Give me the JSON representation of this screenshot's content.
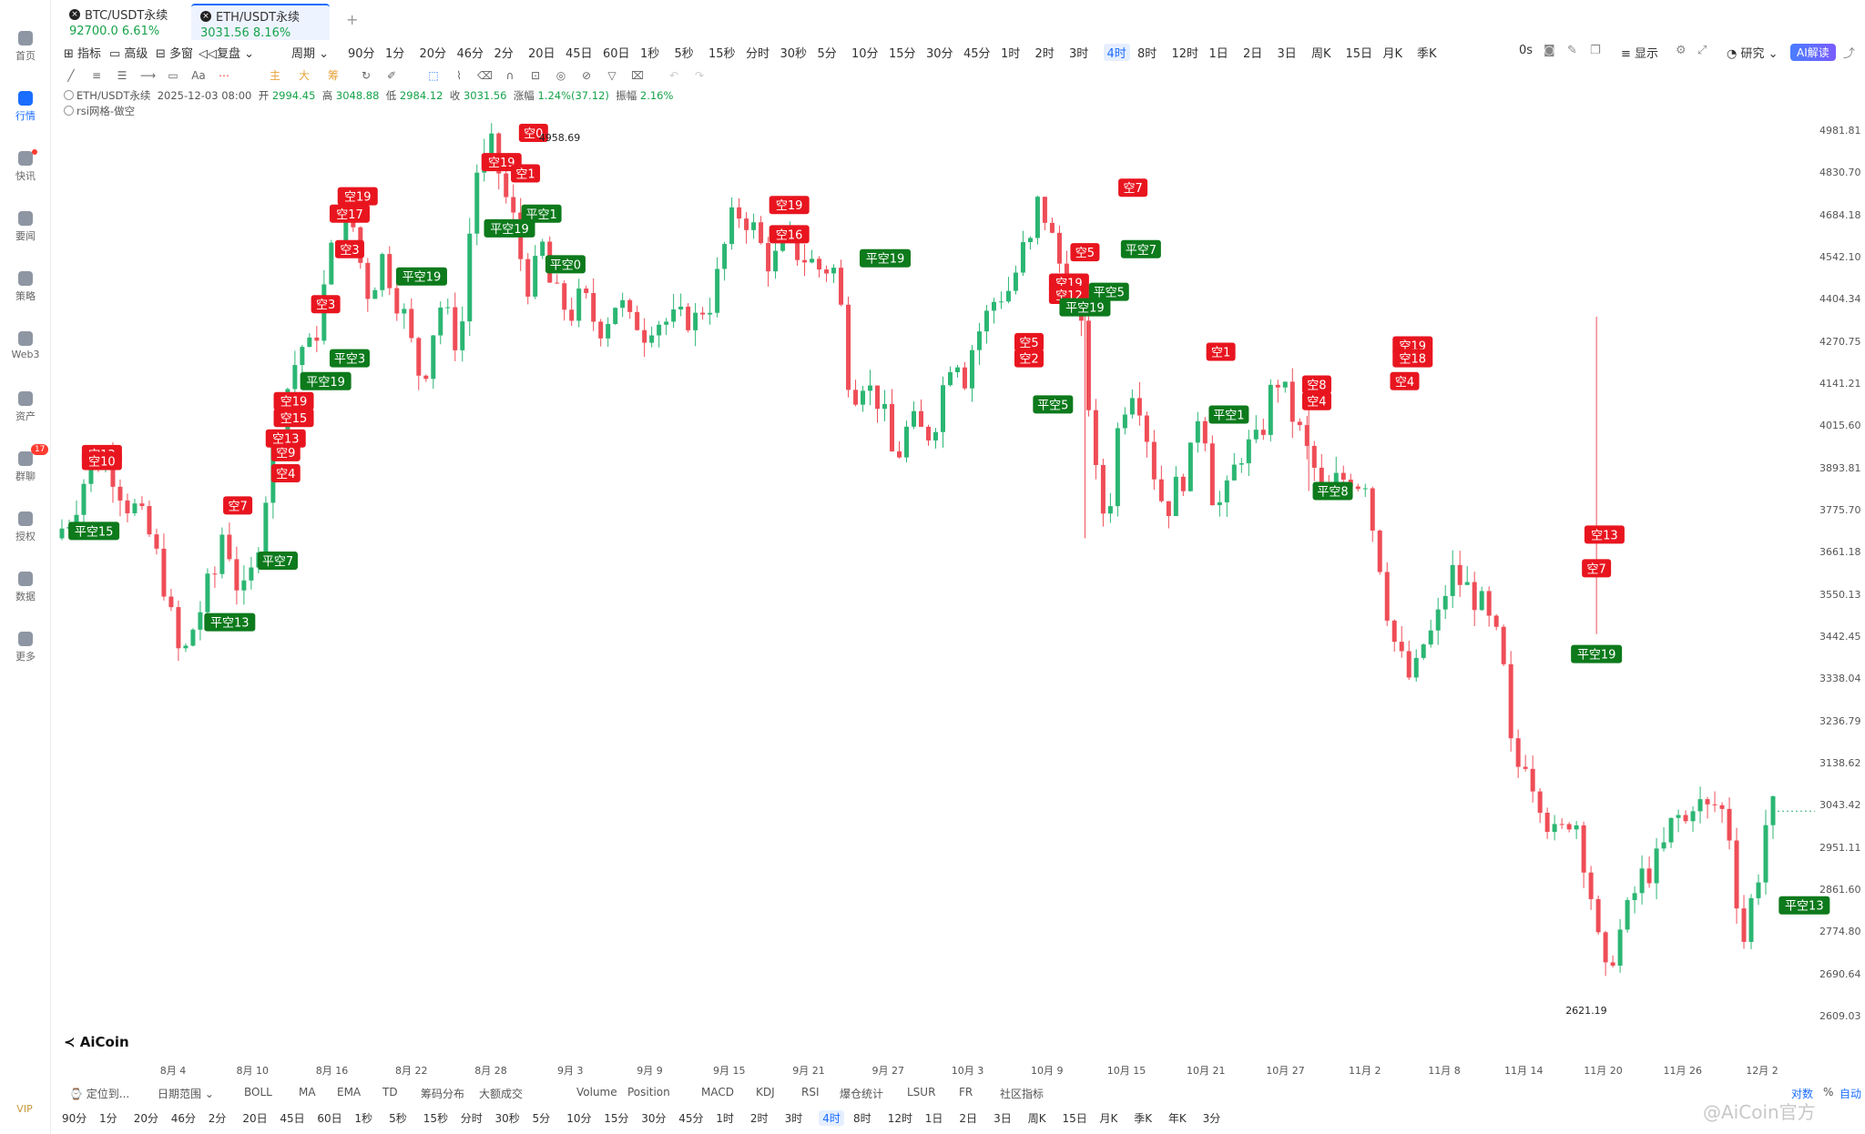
{
  "tabs": [
    {
      "symbol": "BTC/USDT永续",
      "price": "92700.0",
      "change": "6.61%"
    },
    {
      "symbol": "ETH/USDT永续",
      "price": "3031.56",
      "change": "8.16%"
    }
  ],
  "nav": [
    {
      "label": "首页",
      "icon": "home-icon"
    },
    {
      "label": "行情",
      "icon": "chart-bars-icon"
    },
    {
      "label": "快讯",
      "icon": "news-icon"
    },
    {
      "label": "要闻",
      "icon": "document-icon"
    },
    {
      "label": "策略",
      "icon": "robot-icon"
    },
    {
      "label": "Web3",
      "icon": "web3-icon"
    },
    {
      "label": "资产",
      "icon": "wallet-icon"
    },
    {
      "label": "群聊",
      "icon": "chat-icon",
      "badge": "17"
    },
    {
      "label": "授权",
      "icon": "key-icon"
    },
    {
      "label": "数据",
      "icon": "data-icon"
    },
    {
      "label": "更多",
      "icon": "grid-icon"
    }
  ],
  "vip": "VIP",
  "toolbar": {
    "indicator": "指标",
    "advanced": "高级",
    "multi": "多窗",
    "replay": "复盘",
    "period": "周期",
    "timeframes": [
      "90分",
      "1分",
      "20分",
      "46分",
      "2分",
      "20日",
      "45日",
      "60日",
      "1秒",
      "5秒",
      "15秒",
      "分时",
      "30秒",
      "5分",
      "10分",
      "15分",
      "30分",
      "45分",
      "1时",
      "2时",
      "3时",
      "4时",
      "8时",
      "12时",
      "1日",
      "2日",
      "3日",
      "周K",
      "15日",
      "月K",
      "季K"
    ],
    "active_tf": "4时",
    "countdown": "0s",
    "display": "显示",
    "research": "研究",
    "ai": "AI解读"
  },
  "drawing_tools": {
    "main": "主",
    "big": "大",
    "chips": "筹"
  },
  "info": {
    "symbol": "ETH/USDT永续",
    "time": "2025-12-03 08:00",
    "open_label": "开",
    "open": "2994.45",
    "high_label": "高",
    "high": "3048.88",
    "low_label": "低",
    "low": "2984.12",
    "close_label": "收",
    "close": "3031.56",
    "chg_label": "涨幅",
    "chg": "1.24%(37.12)",
    "amp_label": "振幅",
    "amp": "2.16%",
    "strategy": "rsi网格-做空"
  },
  "chart_data": {
    "type": "candlestick",
    "symbol": "ETH/USDT永续",
    "interval": "4时",
    "y_ticks": [
      "4981.81",
      "4830.70",
      "4684.18",
      "4542.10",
      "4404.34",
      "4270.75",
      "4141.21",
      "4015.60",
      "3893.81",
      "3775.70",
      "3661.18",
      "3550.13",
      "3442.45",
      "3338.04",
      "3236.79",
      "3138.62",
      "3043.42",
      "2951.11",
      "2861.60",
      "2774.80",
      "2690.64",
      "2609.03"
    ],
    "x_ticks": [
      "8月 4",
      "8月 10",
      "8月 16",
      "8月 22",
      "8月 28",
      "9月 3",
      "9月 9",
      "9月 15",
      "9月 21",
      "9月 27",
      "10月 3",
      "10月 9",
      "10月 15",
      "10月 21",
      "10月 27",
      "11月 2",
      "11月 8",
      "11月 14",
      "11月 20",
      "11月 26",
      "12月 2"
    ],
    "max_label": "4958.69",
    "min_label": "2621.19",
    "path_points": [
      [
        0,
        3700
      ],
      [
        2,
        3760
      ],
      [
        4,
        3880
      ],
      [
        6,
        3930
      ],
      [
        7,
        3900
      ],
      [
        9,
        3800
      ],
      [
        10,
        3780
      ],
      [
        12,
        3700
      ],
      [
        14,
        3560
      ],
      [
        15,
        3430
      ],
      [
        16,
        3380
      ],
      [
        17,
        3450
      ],
      [
        18,
        3500
      ],
      [
        19,
        3560
      ],
      [
        20,
        3600
      ],
      [
        21,
        3720
      ],
      [
        22,
        3660
      ],
      [
        23,
        3560
      ],
      [
        24,
        3540
      ],
      [
        25,
        3640
      ],
      [
        27,
        3900
      ],
      [
        28,
        4000
      ],
      [
        29,
        4120
      ],
      [
        30,
        4200
      ],
      [
        31,
        4260
      ],
      [
        32,
        4240
      ],
      [
        33,
        4330
      ],
      [
        34,
        4480
      ],
      [
        35,
        4600
      ],
      [
        36,
        4650
      ],
      [
        37,
        4690
      ],
      [
        38,
        4560
      ],
      [
        39,
        4430
      ],
      [
        40,
        4470
      ],
      [
        41,
        4540
      ],
      [
        42,
        4480
      ],
      [
        43,
        4400
      ],
      [
        44,
        4330
      ],
      [
        45,
        4220
      ],
      [
        46,
        4150
      ],
      [
        47,
        4260
      ],
      [
        48,
        4400
      ],
      [
        49,
        4350
      ],
      [
        50,
        4280
      ],
      [
        51,
        4330
      ],
      [
        52,
        4650
      ],
      [
        53,
        4880
      ],
      [
        54,
        4860
      ],
      [
        55,
        4940
      ],
      [
        56,
        4760
      ],
      [
        57,
        4720
      ],
      [
        58,
        4580
      ],
      [
        59,
        4460
      ],
      [
        60,
        4480
      ],
      [
        61,
        4580
      ],
      [
        62,
        4450
      ],
      [
        63,
        4400
      ],
      [
        64,
        4380
      ],
      [
        65,
        4360
      ],
      [
        66,
        4420
      ],
      [
        67,
        4360
      ],
      [
        68,
        4320
      ],
      [
        69,
        4340
      ],
      [
        70,
        4400
      ],
      [
        71,
        4380
      ],
      [
        72,
        4320
      ],
      [
        73,
        4340
      ],
      [
        74,
        4300
      ],
      [
        75,
        4360
      ],
      [
        76,
        4330
      ],
      [
        77,
        4340
      ],
      [
        78,
        4320
      ],
      [
        79,
        4360
      ],
      [
        80,
        4330
      ],
      [
        81,
        4380
      ],
      [
        82,
        4400
      ],
      [
        83,
        4480
      ],
      [
        84,
        4600
      ],
      [
        85,
        4680
      ],
      [
        86,
        4700
      ],
      [
        87,
        4660
      ],
      [
        88,
        4600
      ],
      [
        89,
        4540
      ],
      [
        90,
        4530
      ],
      [
        91,
        4560
      ],
      [
        92,
        4600
      ],
      [
        93,
        4560
      ],
      [
        94,
        4540
      ],
      [
        95,
        4520
      ],
      [
        96,
        4500
      ],
      [
        97,
        4520
      ],
      [
        98,
        4480
      ],
      [
        99,
        4200
      ],
      [
        100,
        4120
      ],
      [
        101,
        4170
      ],
      [
        102,
        4120
      ],
      [
        103,
        4100
      ],
      [
        104,
        4020
      ],
      [
        105,
        3910
      ],
      [
        106,
        3960
      ],
      [
        107,
        4030
      ],
      [
        108,
        4000
      ],
      [
        109,
        3990
      ],
      [
        110,
        4020
      ],
      [
        111,
        4120
      ],
      [
        112,
        4220
      ],
      [
        113,
        4230
      ],
      [
        114,
        4160
      ],
      [
        115,
        4280
      ],
      [
        116,
        4320
      ],
      [
        117,
        4370
      ],
      [
        118,
        4430
      ],
      [
        119,
        4420
      ],
      [
        120,
        4470
      ],
      [
        121,
        4560
      ],
      [
        122,
        4570
      ],
      [
        123,
        4720
      ],
      [
        124,
        4680
      ],
      [
        125,
        4580
      ],
      [
        126,
        4500
      ],
      [
        127,
        4440
      ],
      [
        128,
        4360
      ],
      [
        129,
        4200
      ],
      [
        130,
        3900
      ],
      [
        131,
        3770
      ],
      [
        132,
        3800
      ],
      [
        133,
        4000
      ],
      [
        134,
        4100
      ],
      [
        135,
        4150
      ],
      [
        136,
        4080
      ],
      [
        137,
        3950
      ],
      [
        138,
        3840
      ],
      [
        139,
        3780
      ],
      [
        140,
        3820
      ],
      [
        141,
        3870
      ],
      [
        142,
        3900
      ],
      [
        143,
        4060
      ],
      [
        144,
        4000
      ],
      [
        145,
        3800
      ],
      [
        146,
        3790
      ],
      [
        147,
        3830
      ],
      [
        148,
        3930
      ],
      [
        149,
        3960
      ],
      [
        150,
        3940
      ],
      [
        151,
        4000
      ],
      [
        152,
        4100
      ],
      [
        153,
        4160
      ],
      [
        154,
        4100
      ],
      [
        155,
        4040
      ],
      [
        156,
        3980
      ],
      [
        157,
        3920
      ],
      [
        158,
        3870
      ],
      [
        159,
        3780
      ],
      [
        160,
        3850
      ],
      [
        161,
        3860
      ],
      [
        162,
        3880
      ],
      [
        163,
        3860
      ],
      [
        164,
        3870
      ],
      [
        165,
        3720
      ],
      [
        166,
        3620
      ],
      [
        167,
        3480
      ],
      [
        168,
        3400
      ],
      [
        169,
        3360
      ],
      [
        170,
        3320
      ],
      [
        171,
        3420
      ],
      [
        172,
        3440
      ],
      [
        173,
        3480
      ],
      [
        174,
        3560
      ],
      [
        175,
        3610
      ],
      [
        176,
        3580
      ],
      [
        177,
        3560
      ],
      [
        178,
        3540
      ],
      [
        179,
        3500
      ],
      [
        180,
        3440
      ],
      [
        181,
        3420
      ],
      [
        182,
        3180
      ],
      [
        183,
        3130
      ],
      [
        184,
        3160
      ],
      [
        185,
        3100
      ],
      [
        186,
        3060
      ],
      [
        187,
        3000
      ],
      [
        188,
        2960
      ],
      [
        189,
        3000
      ],
      [
        190,
        3040
      ],
      [
        191,
        2960
      ],
      [
        192,
        2880
      ],
      [
        193,
        2760
      ],
      [
        194,
        2680
      ],
      [
        195,
        2740
      ],
      [
        196,
        2780
      ],
      [
        197,
        2820
      ],
      [
        198,
        2870
      ],
      [
        199,
        2900
      ],
      [
        200,
        2910
      ],
      [
        201,
        2930
      ],
      [
        202,
        2990
      ],
      [
        203,
        3020
      ],
      [
        204,
        3000
      ],
      [
        205,
        3060
      ],
      [
        206,
        3040
      ],
      [
        207,
        3030
      ],
      [
        208,
        3050
      ],
      [
        209,
        3020
      ],
      [
        210,
        2950
      ],
      [
        211,
        2730
      ],
      [
        212,
        2820
      ],
      [
        213,
        2880
      ],
      [
        214,
        3000
      ],
      [
        215,
        3032
      ]
    ],
    "signals": [
      {
        "label": "空13",
        "type": "short",
        "i": 5,
        "y": 3935
      },
      {
        "label": "空10",
        "type": "short",
        "i": 5,
        "y": 3915
      },
      {
        "label": "平空15",
        "type": "cover",
        "i": 4,
        "y": 3720
      },
      {
        "label": "空7",
        "type": "short",
        "i": 22,
        "y": 3790
      },
      {
        "label": "平空13",
        "type": "cover",
        "i": 21,
        "y": 3480
      },
      {
        "label": "平空7",
        "type": "cover",
        "i": 27,
        "y": 3640
      },
      {
        "label": "空4",
        "type": "short",
        "i": 28,
        "y": 3880
      },
      {
        "label": "空9",
        "type": "short",
        "i": 28,
        "y": 3940
      },
      {
        "label": "空13",
        "type": "short",
        "i": 28,
        "y": 3980
      },
      {
        "label": "空15",
        "type": "short",
        "i": 29,
        "y": 4040
      },
      {
        "label": "空19",
        "type": "short",
        "i": 29,
        "y": 4090
      },
      {
        "label": "平空19",
        "type": "cover",
        "i": 33,
        "y": 4150
      },
      {
        "label": "平空3",
        "type": "cover",
        "i": 36,
        "y": 4220
      },
      {
        "label": "空3",
        "type": "short",
        "i": 33,
        "y": 4390
      },
      {
        "label": "空3",
        "type": "short",
        "i": 36,
        "y": 4570
      },
      {
        "label": "空17",
        "type": "short",
        "i": 36,
        "y": 4690
      },
      {
        "label": "空19",
        "type": "short",
        "i": 37,
        "y": 4750
      },
      {
        "label": "平空19",
        "type": "cover",
        "i": 45,
        "y": 4480
      },
      {
        "label": "空19",
        "type": "short",
        "i": 55,
        "y": 4870
      },
      {
        "label": "空0",
        "type": "short",
        "i": 59,
        "y": 4975
      },
      {
        "label": "空1",
        "type": "short",
        "i": 58,
        "y": 4830
      },
      {
        "label": "平空1",
        "type": "cover",
        "i": 60,
        "y": 4690
      },
      {
        "label": "平空19",
        "type": "cover",
        "i": 56,
        "y": 4640
      },
      {
        "label": "平空0",
        "type": "cover",
        "i": 63,
        "y": 4520
      },
      {
        "label": "空19",
        "type": "short",
        "i": 91,
        "y": 4720
      },
      {
        "label": "空16",
        "type": "short",
        "i": 91,
        "y": 4620
      },
      {
        "label": "平空19",
        "type": "cover",
        "i": 103,
        "y": 4540
      },
      {
        "label": "空5",
        "type": "short",
        "i": 121,
        "y": 4270
      },
      {
        "label": "空2",
        "type": "short",
        "i": 121,
        "y": 4220
      },
      {
        "label": "平空5",
        "type": "cover",
        "i": 124,
        "y": 4080
      },
      {
        "label": "空5",
        "type": "short",
        "i": 128,
        "y": 4560
      },
      {
        "label": "空19",
        "type": "short",
        "i": 126,
        "y": 4460
      },
      {
        "label": "空12",
        "type": "short",
        "i": 126,
        "y": 4420
      },
      {
        "label": "平空19",
        "type": "cover",
        "i": 128,
        "y": 4380
      },
      {
        "label": "平空5",
        "type": "cover",
        "i": 131,
        "y": 4430
      },
      {
        "label": "空7",
        "type": "short",
        "i": 134,
        "y": 4780
      },
      {
        "label": "平空7",
        "type": "cover",
        "i": 135,
        "y": 4570
      },
      {
        "label": "空1",
        "type": "short",
        "i": 145,
        "y": 4240
      },
      {
        "label": "平空1",
        "type": "cover",
        "i": 146,
        "y": 4050
      },
      {
        "label": "空8",
        "type": "short",
        "i": 157,
        "y": 4140
      },
      {
        "label": "空4",
        "type": "short",
        "i": 157,
        "y": 4090
      },
      {
        "label": "平空8",
        "type": "cover",
        "i": 159,
        "y": 3830
      },
      {
        "label": "空19",
        "type": "short",
        "i": 169,
        "y": 4260
      },
      {
        "label": "空18",
        "type": "short",
        "i": 169,
        "y": 4220
      },
      {
        "label": "空4",
        "type": "short",
        "i": 168,
        "y": 4150
      },
      {
        "label": "空13",
        "type": "short",
        "i": 193,
        "y": 3710
      },
      {
        "label": "空7",
        "type": "short",
        "i": 192,
        "y": 3620
      },
      {
        "label": "平空19",
        "type": "cover",
        "i": 192,
        "y": 3400
      },
      {
        "label": "平空13",
        "type": "cover",
        "i": 218,
        "y": 2830
      },
      {
        "label": "空2",
        "type": "short",
        "i": 233,
        "y": 3090
      }
    ]
  },
  "indicators_bar": {
    "locate": "定位到...",
    "date_range": "日期范围",
    "items": [
      "BOLL",
      "MA",
      "EMA",
      "TD",
      "筹码分布",
      "大额成交",
      "Volume",
      "Position",
      "MACD",
      "KDJ",
      "RSI",
      "爆仓统计",
      "LSUR",
      "FR",
      "社区指标"
    ],
    "log": "对数",
    "pct": "%",
    "auto": "自动"
  },
  "bottom_timeframes": [
    "90分",
    "1分",
    "20分",
    "46分",
    "2分",
    "20日",
    "45日",
    "60日",
    "1秒",
    "5秒",
    "15秒",
    "分时",
    "30秒",
    "5分",
    "10分",
    "15分",
    "30分",
    "45分",
    "1时",
    "2时",
    "3时",
    "4时",
    "8时",
    "12时",
    "1日",
    "2日",
    "3日",
    "周K",
    "15日",
    "月K",
    "季K",
    "年K",
    "3分"
  ],
  "logo": "AiCoin",
  "watermark": "@AiCoin官方"
}
